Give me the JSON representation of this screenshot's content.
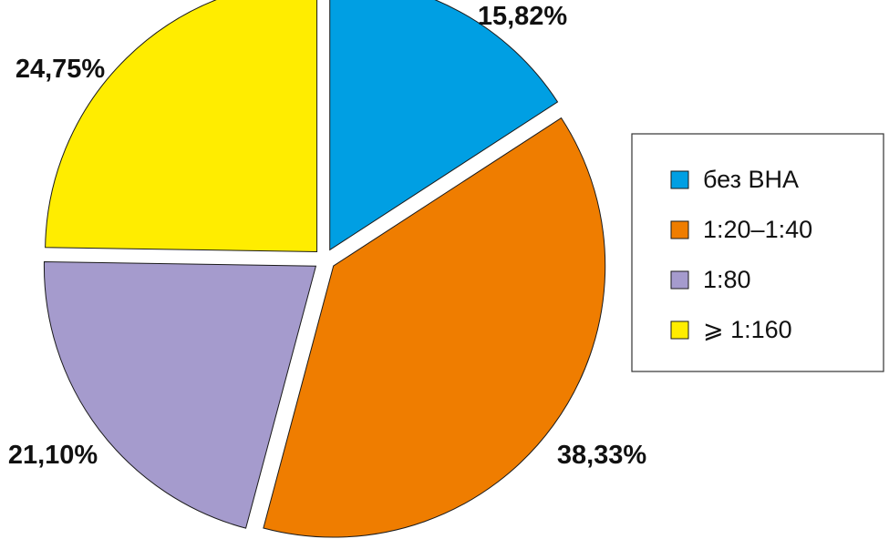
{
  "chart_data": {
    "type": "pie",
    "title": "",
    "categories": [
      "без ВНА",
      "1:20–1:40",
      "1:80",
      "⩾ 1:160"
    ],
    "values": [
      15.82,
      38.33,
      21.1,
      24.75
    ],
    "value_labels": [
      "15,82%",
      "38,33%",
      "21,10%",
      "24,75%"
    ],
    "colors": [
      "#009FE3",
      "#EF7D00",
      "#A59BCD",
      "#FFED00"
    ],
    "start_angle_deg": 0,
    "direction": "clockwise",
    "exploded": true,
    "legend_position": "right"
  }
}
